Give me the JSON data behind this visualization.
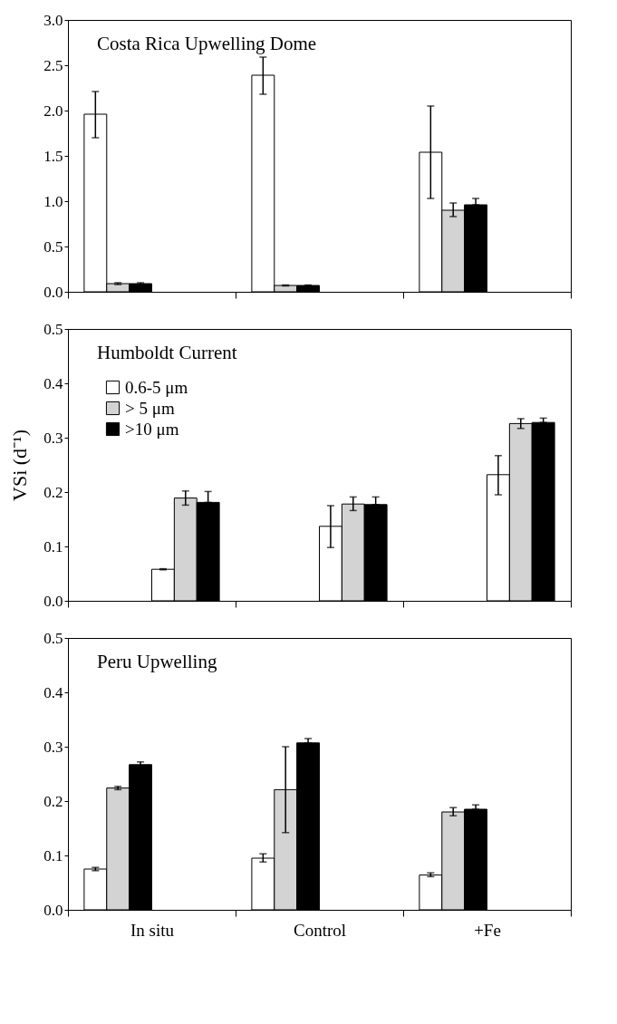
{
  "chart_data": [
    {
      "type": "bar",
      "title": "Costa Rica Upwelling Dome",
      "categories": [
        null,
        null,
        null
      ],
      "series": [
        {
          "color": "#ffffff",
          "values": [
            1.96,
            2.39,
            1.54
          ],
          "errors": [
            [
              1.7,
              2.21
            ],
            [
              2.18,
              2.59
            ],
            [
              1.03,
              2.05
            ]
          ]
        },
        {
          "color": "#d3d3d3",
          "values": [
            0.09,
            0.07,
            0.9
          ],
          "errors": [
            [
              0.08,
              0.1
            ],
            [
              0.065,
              0.075
            ],
            [
              0.83,
              0.98
            ]
          ]
        },
        {
          "color": "#000000",
          "values": [
            0.09,
            0.07,
            0.96
          ],
          "errors": [
            [
              0.08,
              0.1
            ],
            [
              0.065,
              0.075
            ],
            [
              0.96,
              1.03
            ]
          ]
        }
      ],
      "ylim": [
        0,
        3.0
      ],
      "yticks": [
        {
          "value": 0,
          "label": "0.0"
        },
        0.5,
        {
          "value": 1,
          "label": "1.0"
        },
        1.5,
        {
          "value": 2,
          "label": "2.0"
        },
        2.5,
        {
          "value": 3,
          "label": "3.0"
        }
      ],
      "tick_labels": "y",
      "legend": false,
      "grid": false
    },
    {
      "type": "bar",
      "title": "Humboldt Current",
      "ylabel": "VSi (d⁻¹)",
      "categories": [
        null,
        null,
        null
      ],
      "series": [
        {
          "name": "0.6-5 μm",
          "color": "#ffffff",
          "values": [
            0.058,
            0.137,
            0.232
          ],
          "errors": [
            [
              0.057,
              0.059
            ],
            [
              0.098,
              0.175
            ],
            [
              0.195,
              0.267
            ]
          ]
        },
        {
          "name": "> 5 μm",
          "color": "#d3d3d3",
          "values": [
            0.189,
            0.178,
            0.326
          ],
          "errors": [
            [
              0.176,
              0.202
            ],
            [
              0.166,
              0.191
            ],
            [
              0.317,
              0.335
            ]
          ]
        },
        {
          "name": ">10 μm",
          "color": "#000000",
          "values": [
            0.181,
            0.177,
            0.328
          ],
          "errors": [
            [
              0.181,
              0.201
            ],
            [
              0.177,
              0.191
            ],
            [
              0.328,
              0.336
            ]
          ]
        }
      ],
      "ylim": [
        0,
        0.5
      ],
      "yticks": [
        {
          "value": 0,
          "label": "0.0"
        },
        0.1,
        0.2,
        0.3,
        0.4,
        0.5
      ],
      "tick_labels": "y",
      "legend": "top left",
      "grid": false
    },
    {
      "type": "bar",
      "title": "Peru Upwelling",
      "categories": [
        "In situ",
        "Control",
        "+Fe"
      ],
      "series": [
        {
          "color": "#ffffff",
          "values": [
            0.075,
            0.095,
            0.064
          ],
          "errors": [
            [
              0.072,
              0.078
            ],
            [
              0.088,
              0.103
            ],
            [
              0.061,
              0.068
            ]
          ]
        },
        {
          "color": "#d3d3d3",
          "values": [
            0.224,
            0.221,
            0.18
          ],
          "errors": [
            [
              0.221,
              0.227
            ],
            [
              0.142,
              0.3
            ],
            [
              0.173,
              0.188
            ]
          ]
        },
        {
          "color": "#000000",
          "values": [
            0.267,
            0.307,
            0.185
          ],
          "errors": [
            [
              0.262,
              0.272
            ],
            [
              0.307,
              0.315
            ],
            [
              0.185,
              0.193
            ]
          ]
        }
      ],
      "ylim": [
        0,
        0.5
      ],
      "yticks": [
        {
          "value": 0,
          "label": "0.0"
        },
        0.1,
        0.2,
        0.3,
        0.4,
        0.5
      ],
      "legend": false,
      "grid": false
    }
  ]
}
